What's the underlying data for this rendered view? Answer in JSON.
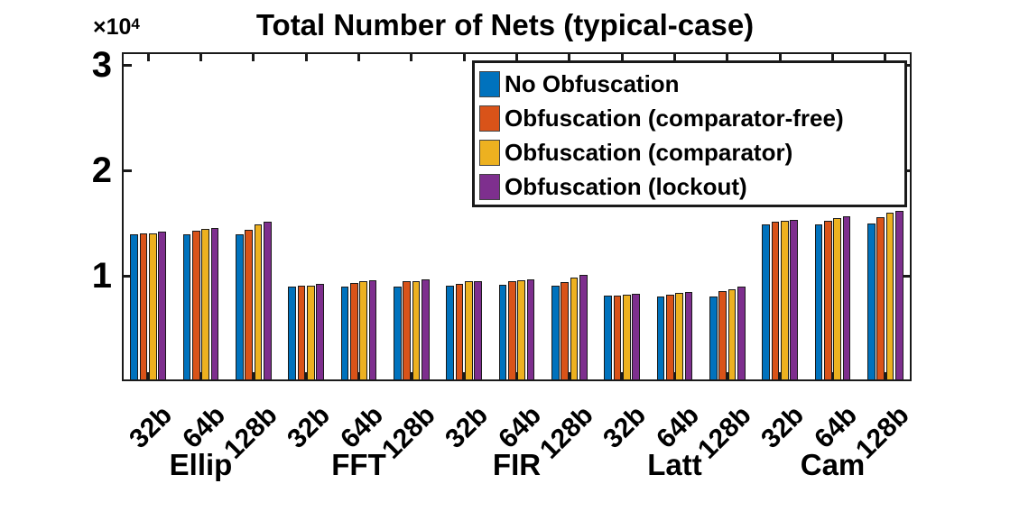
{
  "figure": {
    "title": "Total Number of Nets (typical-case)",
    "y_scale_base": "×10",
    "y_scale_exponent": "4"
  },
  "colors": {
    "axis": "#1a1a1a",
    "background": "#ffffff",
    "no_obfuscation": "#0072BD",
    "obfuscation_comparator_free": "#D95319",
    "obfuscation_comparator": "#EDB120",
    "obfuscation_lockout": "#7E2F8E"
  },
  "chart_data": {
    "type": "bar",
    "title": "Total Number of Nets (typical-case)",
    "y_scale_label": "×10^4",
    "ylabel": "",
    "xlabel": "",
    "ylim": [
      0,
      31200
    ],
    "grid": false,
    "legend_position": "upper-right-inside",
    "yticks": [
      {
        "value": 10000,
        "label": "1"
      },
      {
        "value": 20000,
        "label": "2"
      },
      {
        "value": 30000,
        "label": "3"
      }
    ],
    "group_labels": [
      "Ellip",
      "FFT",
      "FIR",
      "Latt",
      "Cam"
    ],
    "categories": [
      "32b",
      "64b",
      "128b",
      "32b",
      "64b",
      "128b",
      "32b",
      "64b",
      "128b",
      "32b",
      "64b",
      "128b",
      "32b",
      "64b",
      "128b"
    ],
    "series": [
      {
        "name": "No Obfuscation",
        "color": "#0072BD",
        "values": [
          13900,
          13900,
          13900,
          8950,
          8950,
          8950,
          9100,
          9150,
          9050,
          8100,
          8050,
          8050,
          14900,
          14900,
          15000
        ]
      },
      {
        "name": "Obfuscation (comparator-free)",
        "color": "#D95319",
        "values": [
          14050,
          14300,
          14350,
          9050,
          9350,
          9450,
          9200,
          9450,
          9400,
          8100,
          8200,
          8550,
          15100,
          15250,
          15600
        ]
      },
      {
        "name": "Obfuscation (comparator)",
        "color": "#EDB120",
        "values": [
          14000,
          14450,
          14900,
          9100,
          9450,
          9500,
          9450,
          9550,
          9850,
          8200,
          8400,
          8750,
          15250,
          15500,
          15950
        ]
      },
      {
        "name": "Obfuscation (lockout)",
        "color": "#7E2F8E",
        "values": [
          14200,
          14550,
          15100,
          9250,
          9600,
          9700,
          9500,
          9700,
          10050,
          8300,
          8450,
          8950,
          15300,
          15650,
          16150
        ]
      }
    ]
  }
}
